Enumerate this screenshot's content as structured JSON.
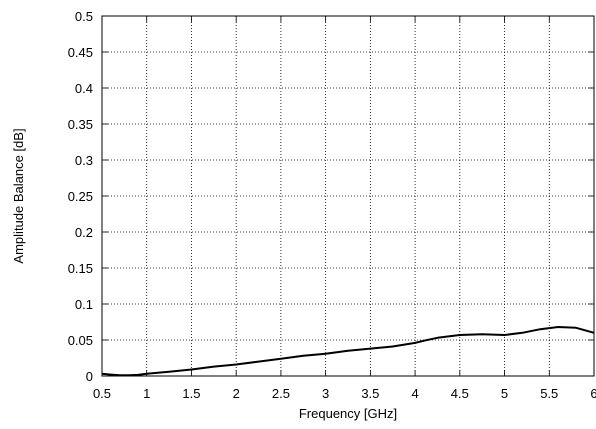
{
  "chart_data": {
    "type": "line",
    "title": "",
    "xlabel": "Frequency [GHz]",
    "ylabel": "Amplitude Balance [dB]",
    "xlim": [
      0.5,
      6
    ],
    "ylim": [
      0,
      0.5
    ],
    "xticks": [
      "0.5",
      "1",
      "1.5",
      "2",
      "2.5",
      "3",
      "3.5",
      "4",
      "4.5",
      "5",
      "5.5",
      "6"
    ],
    "yticks": [
      "0",
      "0.05",
      "0.1",
      "0.15",
      "0.2",
      "0.25",
      "0.3",
      "0.35",
      "0.4",
      "0.45",
      "0.5"
    ],
    "grid": true,
    "grid_style": "dotted",
    "legend": "none",
    "line_color": "#000000",
    "series": [
      {
        "x": [
          0.5,
          0.6,
          0.7,
          0.8,
          0.9,
          1.0,
          1.25,
          1.5,
          1.75,
          2.0,
          2.25,
          2.5,
          2.75,
          3.0,
          3.25,
          3.5,
          3.75,
          4.0,
          4.1,
          4.25,
          4.5,
          4.75,
          5.0,
          5.2,
          5.4,
          5.6,
          5.8,
          6.0
        ],
        "y": [
          0.003,
          0.002,
          0.001,
          0.001,
          0.0015,
          0.003,
          0.006,
          0.009,
          0.013,
          0.016,
          0.02,
          0.024,
          0.028,
          0.031,
          0.035,
          0.038,
          0.041,
          0.046,
          0.049,
          0.053,
          0.057,
          0.058,
          0.057,
          0.06,
          0.065,
          0.068,
          0.067,
          0.06
        ]
      }
    ]
  }
}
